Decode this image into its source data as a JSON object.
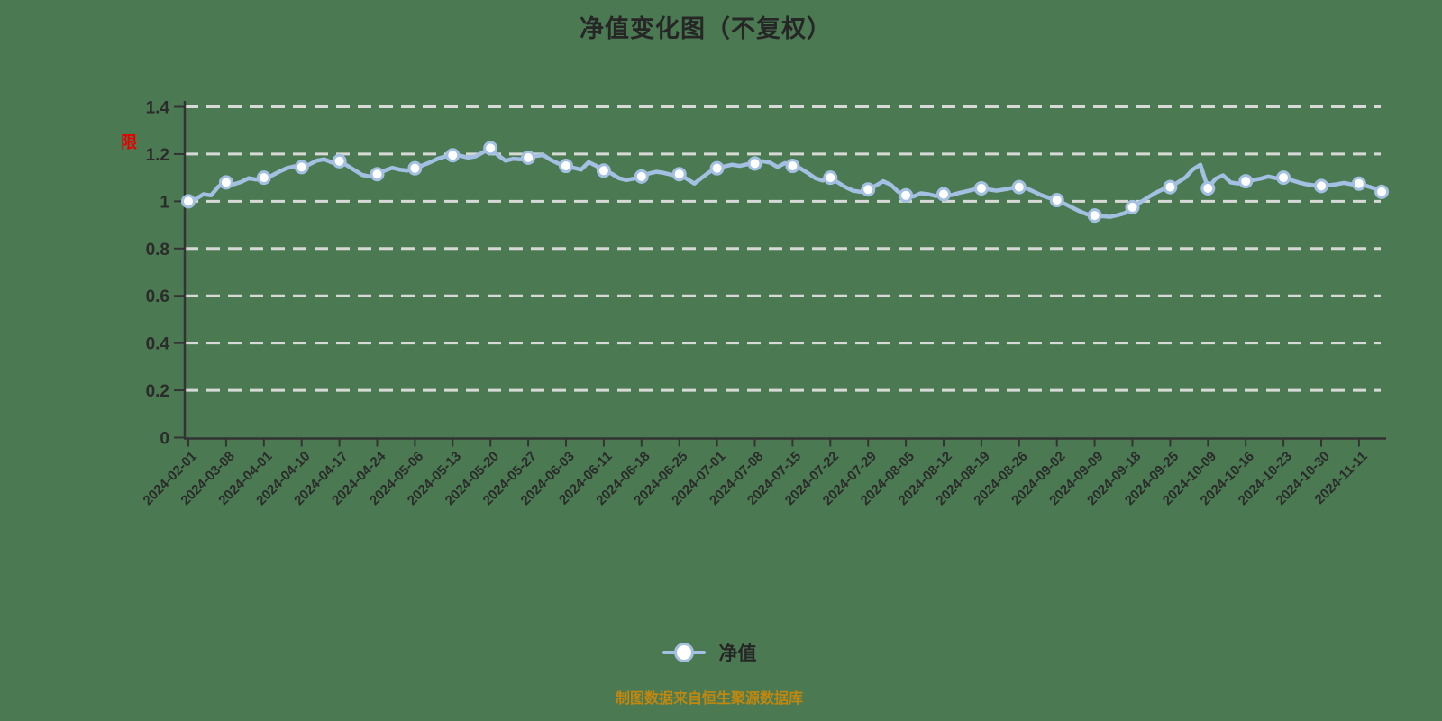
{
  "title": "净值变化图（不复权）",
  "restriction_label": "限",
  "legend": {
    "label": "净值"
  },
  "footer": "制图数据来自恒生聚源数据库",
  "colors": {
    "background": "#4b7a52",
    "line": "#a3c0e3",
    "marker_fill": "#ffffff",
    "grid": "#e2e2e2",
    "axis": "#333333",
    "text": "#2b2b2b",
    "restriction": "#e60000",
    "footer_text": "#c1870f"
  },
  "chart_data": {
    "type": "line",
    "title": "净值变化图（不复权）",
    "series_name": "净值",
    "xlabel": "",
    "ylabel": "",
    "ylim": [
      0,
      1.4
    ],
    "yticks": [
      0,
      0.2,
      0.4,
      0.6,
      0.8,
      1,
      1.2,
      1.4
    ],
    "grid": "dashed-horizontal",
    "legend_position": "bottom",
    "x_tick_labels": [
      "2024-02-01",
      "2024-03-08",
      "2024-04-01",
      "2024-04-10",
      "2024-04-17",
      "2024-04-24",
      "2024-05-06",
      "2024-05-13",
      "2024-05-20",
      "2024-05-27",
      "2024-06-03",
      "2024-06-11",
      "2024-06-18",
      "2024-06-25",
      "2024-07-01",
      "2024-07-08",
      "2024-07-15",
      "2024-07-22",
      "2024-07-29",
      "2024-08-05",
      "2024-08-12",
      "2024-08-19",
      "2024-08-26",
      "2024-09-02",
      "2024-09-09",
      "2024-09-18",
      "2024-09-25",
      "2024-10-09",
      "2024-10-16",
      "2024-10-23",
      "2024-10-30",
      "2024-11-11"
    ],
    "points_per_tick": 5,
    "marker_every": 5,
    "values": [
      1.0,
      1.01,
      1.03,
      1.025,
      1.063,
      1.08,
      1.072,
      1.082,
      1.098,
      1.092,
      1.1,
      1.108,
      1.125,
      1.14,
      1.148,
      1.145,
      1.156,
      1.172,
      1.178,
      1.164,
      1.17,
      1.152,
      1.132,
      1.112,
      1.105,
      1.115,
      1.13,
      1.142,
      1.134,
      1.13,
      1.14,
      1.152,
      1.165,
      1.18,
      1.19,
      1.195,
      1.193,
      1.185,
      1.19,
      1.207,
      1.225,
      1.195,
      1.172,
      1.18,
      1.178,
      1.185,
      1.192,
      1.196,
      1.175,
      1.16,
      1.15,
      1.142,
      1.134,
      1.166,
      1.15,
      1.13,
      1.118,
      1.098,
      1.09,
      1.096,
      1.105,
      1.118,
      1.125,
      1.12,
      1.112,
      1.115,
      1.095,
      1.075,
      1.1,
      1.124,
      1.14,
      1.148,
      1.155,
      1.15,
      1.157,
      1.16,
      1.17,
      1.164,
      1.145,
      1.162,
      1.15,
      1.14,
      1.12,
      1.098,
      1.088,
      1.1,
      1.08,
      1.06,
      1.045,
      1.04,
      1.05,
      1.066,
      1.085,
      1.07,
      1.04,
      1.025,
      1.02,
      1.034,
      1.03,
      1.022,
      1.03,
      1.026,
      1.035,
      1.042,
      1.05,
      1.055,
      1.05,
      1.045,
      1.05,
      1.056,
      1.06,
      1.055,
      1.04,
      1.025,
      1.014,
      1.005,
      0.99,
      0.974,
      0.958,
      0.945,
      0.94,
      0.937,
      0.934,
      0.941,
      0.95,
      0.975,
      0.995,
      1.015,
      1.035,
      1.05,
      1.06,
      1.08,
      1.1,
      1.135,
      1.155,
      1.055,
      1.095,
      1.11,
      1.08,
      1.075,
      1.085,
      1.09,
      1.096,
      1.105,
      1.098,
      1.1,
      1.09,
      1.08,
      1.072,
      1.068,
      1.065,
      1.068,
      1.072,
      1.078,
      1.072,
      1.075,
      1.065,
      1.055,
      1.04
    ]
  }
}
